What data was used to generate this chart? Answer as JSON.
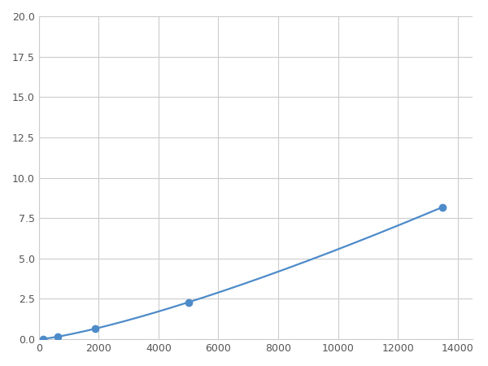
{
  "x": [
    156,
    313,
    625,
    1250,
    2500,
    5000,
    10000,
    13500
  ],
  "y": [
    0.04,
    0.08,
    0.12,
    0.25,
    0.6,
    2.5,
    7.5,
    10.0
  ],
  "marker_x": [
    156,
    625,
    1875,
    5000,
    13500
  ],
  "marker_y": [
    0.04,
    0.12,
    0.55,
    2.5,
    10.0
  ],
  "line_color": "#4d8bc9",
  "marker_color": "#4d8bc9",
  "marker_size": 7,
  "linewidth": 1.6,
  "xlim": [
    0,
    14500
  ],
  "ylim": [
    0,
    20
  ],
  "xticks": [
    0,
    2000,
    4000,
    6000,
    8000,
    10000,
    12000,
    14000
  ],
  "yticks": [
    0.0,
    2.5,
    5.0,
    7.5,
    10.0,
    12.5,
    15.0,
    17.5,
    20.0
  ],
  "grid_color": "#cccccc",
  "background_color": "#ffffff",
  "figsize": [
    6.0,
    4.5
  ],
  "dpi": 100
}
